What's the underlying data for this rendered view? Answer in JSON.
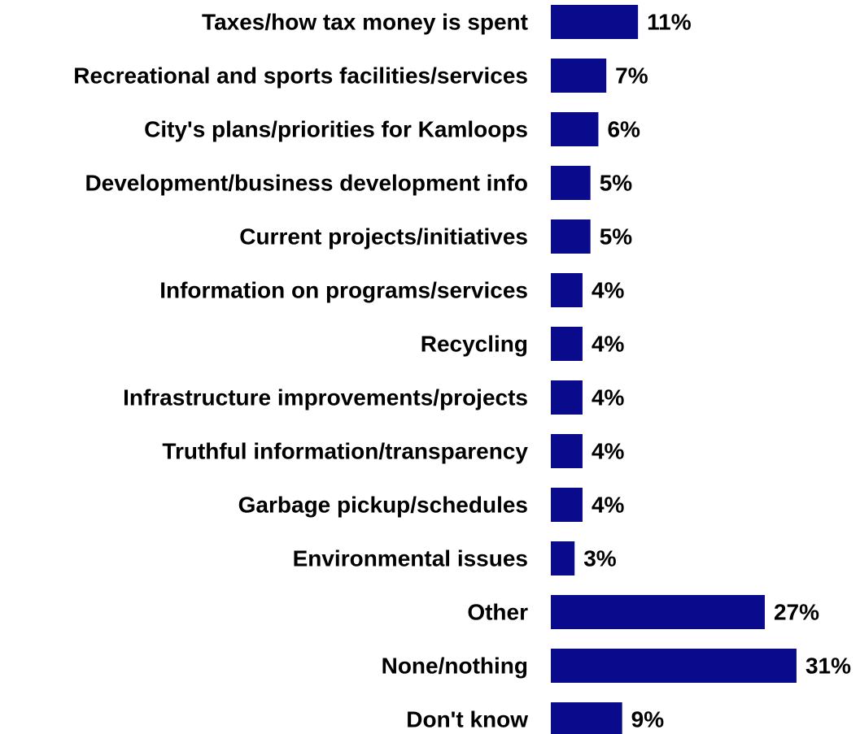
{
  "chart_data": {
    "type": "bar",
    "orientation": "horizontal",
    "categories": [
      "Taxes/how tax money is spent",
      "Recreational and sports facilities/services",
      "City's plans/priorities for Kamloops",
      "Development/business development info",
      "Current projects/initiatives",
      "Information on programs/services",
      "Recycling",
      "Infrastructure improvements/projects",
      "Truthful information/transparency",
      "Garbage pickup/schedules",
      "Environmental issues",
      "Other",
      "None/nothing",
      "Don't know"
    ],
    "values": [
      11,
      7,
      6,
      5,
      5,
      4,
      4,
      4,
      4,
      4,
      3,
      27,
      31,
      9
    ],
    "value_labels": [
      "11%",
      "7%",
      "6%",
      "5%",
      "5%",
      "4%",
      "4%",
      "4%",
      "4%",
      "4%",
      "3%",
      "27%",
      "31%",
      "9%"
    ],
    "unit": "%",
    "bar_color": "#0A0A8C",
    "grid": false,
    "legend": "none"
  }
}
